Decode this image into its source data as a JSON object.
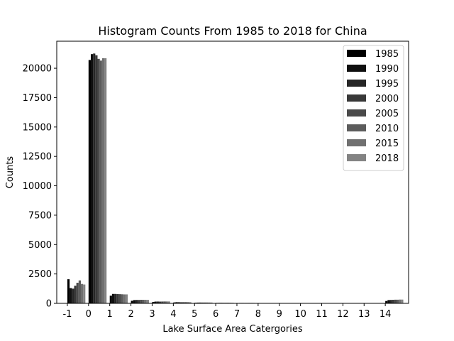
{
  "chart_data": {
    "type": "bar",
    "title": "Histogram Counts From 1985 to 2018 for China",
    "xlabel": "Lake Surface Area Catergories",
    "ylabel": "Counts",
    "categories": [
      "-1",
      "0",
      "1",
      "2",
      "3",
      "4",
      "5",
      "6",
      "7",
      "8",
      "9",
      "10",
      "11",
      "12",
      "13",
      "14"
    ],
    "xlim": [
      -1.5,
      15.1
    ],
    "ylim": [
      0,
      22300
    ],
    "yticks": [
      0,
      2500,
      5000,
      7500,
      10000,
      12500,
      15000,
      17500,
      20000
    ],
    "legend_position": "top-right",
    "grid": false,
    "series": [
      {
        "name": "1985",
        "color": "#000000",
        "values": [
          2050,
          20700,
          650,
          220,
          120,
          80,
          55,
          40,
          30,
          20,
          12,
          8,
          6,
          4,
          3,
          200
        ]
      },
      {
        "name": "1990",
        "color": "#0f0f0f",
        "values": [
          1300,
          21200,
          800,
          280,
          150,
          100,
          65,
          45,
          35,
          25,
          15,
          10,
          7,
          5,
          4,
          280
        ]
      },
      {
        "name": "1995",
        "color": "#262626",
        "values": [
          1250,
          21250,
          800,
          290,
          155,
          100,
          70,
          48,
          36,
          26,
          16,
          11,
          8,
          5,
          4,
          290
        ]
      },
      {
        "name": "2000",
        "color": "#383838",
        "values": [
          1500,
          21100,
          790,
          290,
          150,
          95,
          68,
          46,
          35,
          25,
          15,
          10,
          7,
          5,
          4,
          300
        ]
      },
      {
        "name": "2005",
        "color": "#4a4a4a",
        "values": [
          1750,
          20800,
          780,
          300,
          155,
          100,
          70,
          48,
          36,
          26,
          16,
          11,
          8,
          5,
          4,
          310
        ]
      },
      {
        "name": "2010",
        "color": "#5c5c5c",
        "values": [
          1950,
          20650,
          770,
          300,
          160,
          105,
          72,
          50,
          38,
          27,
          17,
          11,
          8,
          6,
          4,
          310
        ]
      },
      {
        "name": "2015",
        "color": "#707070",
        "values": [
          1650,
          20850,
          760,
          300,
          160,
          105,
          72,
          50,
          38,
          27,
          17,
          11,
          8,
          6,
          4,
          320
        ]
      },
      {
        "name": "2018",
        "color": "#838383",
        "values": [
          1600,
          20850,
          760,
          300,
          160,
          100,
          70,
          48,
          36,
          26,
          16,
          11,
          8,
          6,
          4,
          320
        ]
      }
    ]
  }
}
